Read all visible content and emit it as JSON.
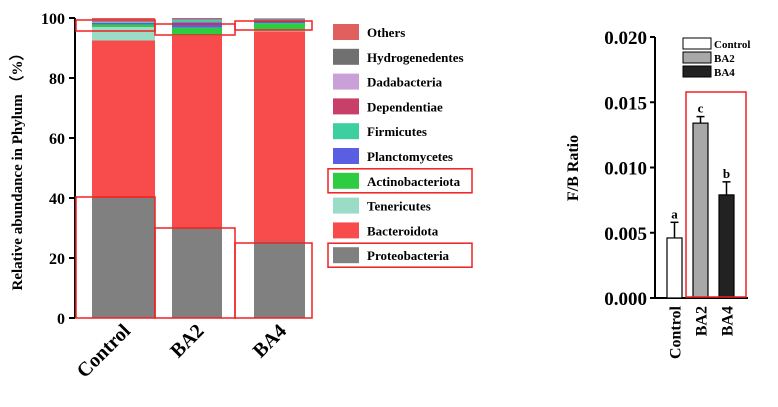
{
  "chart_data": [
    {
      "type": "bar",
      "stacked": true,
      "ylabel": "Relative abundance in Phylum （%）",
      "ylim": [
        0,
        100
      ],
      "yticks": [
        0,
        20,
        40,
        60,
        80,
        100
      ],
      "categories": [
        "Control",
        "BA2",
        "BA4"
      ],
      "legend_placement": "right",
      "series": [
        {
          "name": "Proteobacteria",
          "color": "#808080",
          "values": [
            40,
            30,
            25.5
          ]
        },
        {
          "name": "Bacteroidota",
          "color": "#f84c4c",
          "values": [
            52.5,
            64,
            70
          ]
        },
        {
          "name": "Tenericutes",
          "color": "#9adcc6",
          "values": [
            4.5,
            0.3,
            0.3
          ]
        },
        {
          "name": "Actinobacteriota",
          "color": "#2ecc40",
          "values": [
            0.8,
            2.5,
            2.5
          ]
        },
        {
          "name": "Planctomycetes",
          "color": "#5a5ee0",
          "values": [
            0.6,
            1.8,
            0.6
          ]
        },
        {
          "name": "Firmicutes",
          "color": "#3ecfa0",
          "values": [
            0.4,
            0.7,
            0.6
          ]
        },
        {
          "name": "Dependentiae",
          "color": "#c8406a",
          "values": [
            0.3,
            0.2,
            0.2
          ]
        },
        {
          "name": "Dadabacteria",
          "color": "#c9a0d8",
          "values": [
            0.3,
            0.2,
            0.2
          ]
        },
        {
          "name": "Hydrogenedentes",
          "color": "#707070",
          "values": [
            0.2,
            0.3,
            0.1
          ]
        },
        {
          "name": "Others",
          "color": "#e06060",
          "values": [
            0.4,
            0,
            0
          ]
        }
      ],
      "highlighted_legend": [
        "Actinobacteriota",
        "Proteobacteria"
      ]
    },
    {
      "type": "bar",
      "ylabel": "F/B Ratio",
      "ylim": [
        0,
        0.02
      ],
      "yticks": [
        "0.000",
        "0.005",
        "0.010",
        "0.015",
        "0.020"
      ],
      "categories": [
        "Control",
        "BA2",
        "BA4"
      ],
      "values": [
        0.0046,
        0.0134,
        0.0079
      ],
      "errors": [
        0.0012,
        0.0005,
        0.001
      ],
      "letters": [
        "a",
        "c",
        "b"
      ],
      "colors": [
        "#ffffff",
        "#a8a8a8",
        "#222222"
      ],
      "legend": [
        "Control",
        "BA2",
        "BA4"
      ],
      "legend_placement": "top-right"
    }
  ]
}
